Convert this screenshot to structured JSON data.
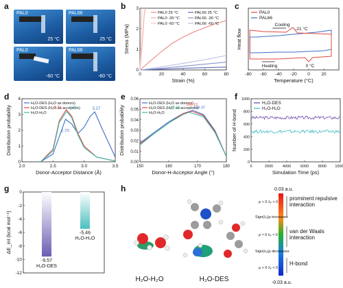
{
  "panels": {
    "a": "a",
    "b": "b",
    "c": "c",
    "d": "d",
    "e": "e",
    "f": "f",
    "g": "g",
    "h": "h"
  },
  "photos": [
    {
      "tag": "PAL0",
      "temp": "25 °C"
    },
    {
      "tag": "PAL66",
      "temp": "25 °C"
    },
    {
      "tag": "PAL0",
      "temp": "-60 °C"
    },
    {
      "tag": "PAL66",
      "temp": "-60 °C"
    }
  ],
  "panel_h": {
    "bar_top": "0.03 a.u.",
    "bar_bottom": "-0.03 a.u.",
    "label_repulsive": "prominent repulsive interaction",
    "label_vdw": "van der Waals interaction",
    "label_hbond": "H-bond",
    "sign_increases": "Sign(λ₂)ρ increases",
    "sign_decreases": "Sign(λ₂)ρ decreases",
    "rho_top": "ρ > 0 λ₂ > 0",
    "rho_mid": "ρ ≈ 0 λ₂ ≈ 0",
    "rho_bot": "ρ > 0 λ₂ < 0",
    "mol_left": "H₂O-H₂O",
    "mol_right": "H₂O-DES"
  },
  "chart_data": [
    {
      "panel": "b",
      "type": "line",
      "xlabel": "Strain (%)",
      "ylabel": "Stress (MPa)",
      "xlim": [
        0,
        80
      ],
      "ylim": [
        0,
        3
      ],
      "xticks": [
        0,
        20,
        40,
        60,
        80
      ],
      "yticks": [
        0,
        1,
        2,
        3
      ],
      "series": [
        {
          "name": "PAL0 25 °C",
          "color": "#e8877f",
          "x": [
            0,
            10,
            20,
            30,
            40,
            50,
            60,
            70,
            80
          ],
          "y": [
            0,
            0.45,
            0.9,
            1.3,
            1.6,
            1.85,
            2.05,
            2.25,
            2.4
          ]
        },
        {
          "name": "PAL0 -30 °C",
          "color": "#f3a9a3",
          "x": [
            0,
            2,
            4,
            5
          ],
          "y": [
            0,
            1.2,
            2.7,
            3.0
          ]
        },
        {
          "name": "PAL0 -60 °C",
          "color": "#f6c6c2",
          "x": [
            0,
            1,
            2
          ],
          "y": [
            0,
            1.5,
            3.0
          ]
        },
        {
          "name": "PAL66 25 °C",
          "color": "#5c6bb8",
          "x": [
            0,
            20,
            40,
            60,
            80
          ],
          "y": [
            0,
            0.04,
            0.08,
            0.11,
            0.14
          ]
        },
        {
          "name": "PAL66 -30 °C",
          "color": "#8993cf",
          "x": [
            0,
            20,
            40,
            60,
            80
          ],
          "y": [
            0,
            0.08,
            0.18,
            0.28,
            0.38
          ]
        },
        {
          "name": "PAL66 -60 °C",
          "color": "#b7bde3",
          "x": [
            0,
            20,
            40,
            60,
            80
          ],
          "y": [
            0,
            0.15,
            0.32,
            0.5,
            0.7
          ]
        }
      ]
    },
    {
      "panel": "c",
      "type": "line",
      "xlabel": "Temperature (°C)",
      "ylabel": "Heat flow",
      "xlim": [
        -80,
        40
      ],
      "xticks": [
        -80,
        -60,
        -40,
        -20,
        0,
        20
      ],
      "series": [
        {
          "name": "PAL0",
          "color": "#e0473f"
        },
        {
          "name": "PAL66",
          "color": "#3c6fc7"
        }
      ],
      "annotations": [
        "Cooling",
        "-21 °C",
        "Heating",
        "0 °C"
      ]
    },
    {
      "panel": "d",
      "type": "line",
      "xlabel": "Donor-Acceptor Distance (Å)",
      "ylabel": "Distribution probability",
      "xlim": [
        2.0,
        3.5
      ],
      "ylim": [
        0,
        4
      ],
      "xticks": [
        "2.0",
        "2.5",
        "3.0",
        "3.5"
      ],
      "yticks": [
        0,
        1,
        2,
        3,
        4
      ],
      "series": [
        {
          "name": "H₂O-DES (H₂O as donors)",
          "color": "#3c6fc7",
          "x": [
            2.3,
            2.5,
            2.6,
            2.7,
            2.8,
            2.9,
            3.0,
            3.1,
            3.17,
            3.3,
            3.5
          ],
          "y": [
            0,
            0.5,
            1.6,
            2.7,
            2.4,
            1.8,
            2.2,
            2.9,
            3.17,
            2.0,
            0.3
          ]
        },
        {
          "name": "H₂O-DES (H₂O as acceptors)",
          "color": "#e0473f",
          "x": [
            2.3,
            2.5,
            2.6,
            2.71,
            2.8,
            2.9,
            3.0,
            3.2,
            3.5
          ],
          "y": [
            0,
            0.8,
            2.6,
            3.3,
            2.9,
            1.8,
            1.0,
            0.3,
            0.05
          ]
        },
        {
          "name": "H₂O-H₂O",
          "color": "#3cb9a7",
          "x": [
            2.3,
            2.5,
            2.6,
            2.72,
            2.8,
            2.9,
            3.0,
            3.2,
            3.5
          ],
          "y": [
            0,
            0.7,
            2.5,
            3.2,
            2.8,
            1.7,
            0.9,
            0.3,
            0.05
          ]
        }
      ],
      "annotations": [
        "2.71",
        "2.72",
        "2.70",
        "3.17"
      ]
    },
    {
      "panel": "e",
      "type": "line",
      "xlabel": "Donor-H-Acceptor Angle (°)",
      "ylabel": "Distribution probability",
      "xlim": [
        150,
        180
      ],
      "ylim": [
        0,
        0.06
      ],
      "xticks": [
        150,
        160,
        170,
        180
      ],
      "yticks": [
        "0.00",
        "0.01",
        "0.02",
        "0.03",
        "0.04",
        "0.05",
        "0.06"
      ],
      "series": [
        {
          "name": "H₂O-DES (H₂O as donors)",
          "color": "#3c6fc7",
          "x": [
            150,
            155,
            160,
            165,
            168.37,
            172,
            176,
            180
          ],
          "y": [
            0.018,
            0.028,
            0.038,
            0.046,
            0.049,
            0.045,
            0.03,
            0.005
          ]
        },
        {
          "name": "H₂O-DES (H₂O as acceptors)",
          "color": "#e0473f",
          "x": [
            150,
            155,
            160,
            165,
            168.13,
            172,
            176,
            180
          ],
          "y": [
            0.017,
            0.027,
            0.037,
            0.046,
            0.048,
            0.044,
            0.029,
            0.005
          ]
        },
        {
          "name": "H₂O-H₂O",
          "color": "#3cb9a7",
          "x": [
            150,
            155,
            160,
            165,
            167.02,
            172,
            176,
            180
          ],
          "y": [
            0.016,
            0.027,
            0.037,
            0.045,
            0.047,
            0.043,
            0.028,
            0.005
          ]
        }
      ],
      "annotations": [
        "168.13",
        "167.02",
        "168.37"
      ]
    },
    {
      "panel": "f",
      "type": "line",
      "xlabel": "Simulation Time (ps)",
      "ylabel": "Number of H-bond",
      "xlim": [
        0,
        10000
      ],
      "ylim": [
        0,
        1000
      ],
      "xticks": [
        0,
        2000,
        4000,
        6000,
        8000,
        10000
      ],
      "yticks": [
        0,
        200,
        400,
        600,
        800,
        1000
      ],
      "series": [
        {
          "name": "H₂O-DES",
          "color": "#7b5bb7",
          "mean": 700
        },
        {
          "name": "H₂O-H₂O",
          "color": "#4fc1c8",
          "mean": 480
        }
      ]
    },
    {
      "panel": "g",
      "type": "bar",
      "ylabel": "ΔE_int (kcal mol⁻¹)",
      "ylim": [
        -12,
        0
      ],
      "yticks": [
        0,
        -2,
        -4,
        -6,
        -8,
        -10,
        -12
      ],
      "categories": [
        "H₂O-DES",
        "H₂O-H₂O"
      ],
      "values": [
        -9.57,
        -5.46
      ],
      "value_labels": [
        "-9.57",
        "-5.46"
      ],
      "colors": [
        "#6a5fb3",
        "#4bbfbf"
      ]
    }
  ]
}
